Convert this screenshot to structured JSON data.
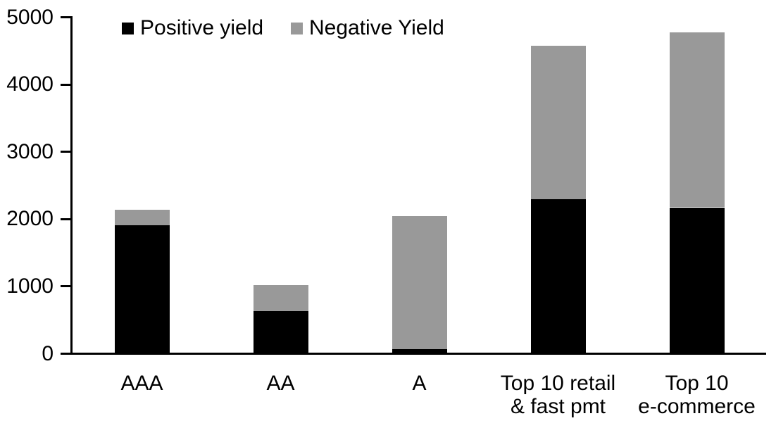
{
  "chart_data": {
    "type": "bar",
    "stacked": true,
    "title": "",
    "xlabel": "",
    "ylabel": "",
    "categories": [
      "AAA",
      "AA",
      "A",
      "Top 10 retail\n& fast pmt",
      "Top 10\ne-commerce"
    ],
    "series": [
      {
        "name": "Positive yield",
        "color": "#000000",
        "values": [
          1890,
          620,
          50,
          2280,
          2160
        ]
      },
      {
        "name": "Negative Yield",
        "color": "#999999",
        "values": [
          230,
          380,
          1980,
          2280,
          2600
        ]
      }
    ],
    "totals": [
      2120,
      1000,
      2030,
      4560,
      4760
    ],
    "ylim": [
      0,
      5000
    ],
    "yticks": [
      0,
      1000,
      2000,
      3000,
      4000,
      5000
    ],
    "grid": false,
    "legend_position": "top",
    "axis_color": "#000000",
    "background_color": "#ffffff"
  }
}
